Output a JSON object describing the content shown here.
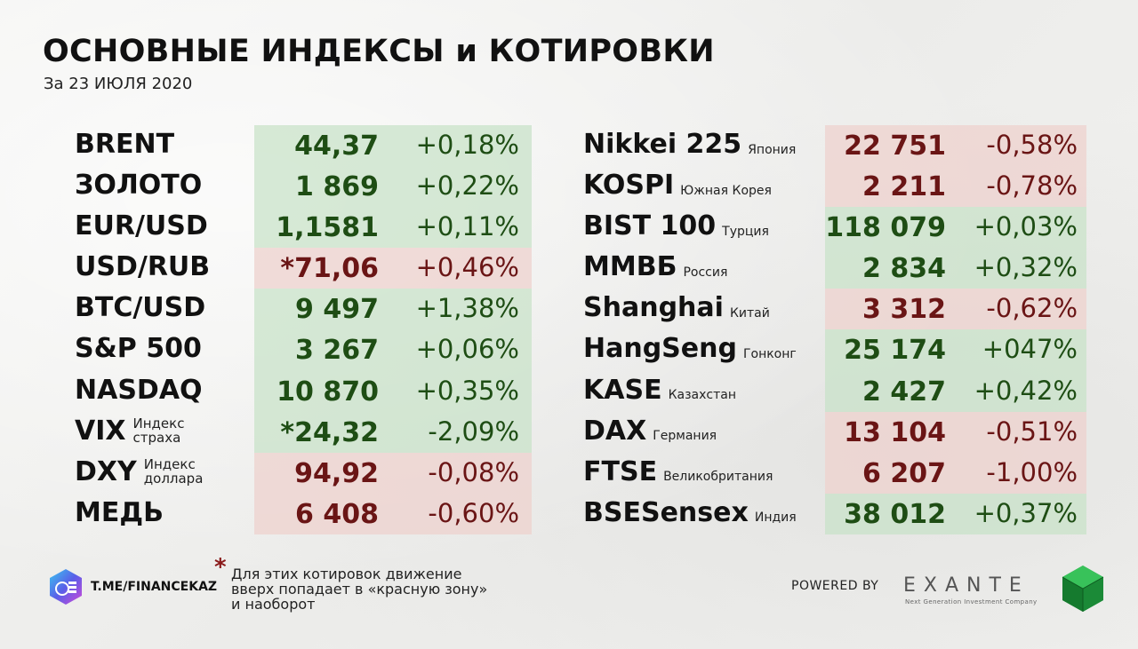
{
  "header": {
    "title": "ОСНОВНЫЕ ИНДЕКСЫ и КОТИРОВКИ",
    "subtitle": "За 23 ИЮЛЯ 2020"
  },
  "left_rows": [
    {
      "name": "BRENT",
      "value": "44,37",
      "change": "+0,18%",
      "direction": "up"
    },
    {
      "name": "ЗОЛОТО",
      "value": "1 869",
      "change": "+0,22%",
      "direction": "up"
    },
    {
      "name": "EUR/USD",
      "value": "1,1581",
      "change": "+0,11%",
      "direction": "up"
    },
    {
      "name": "USD/RUB",
      "value": "*71,06",
      "change": "+0,46%",
      "direction": "down"
    },
    {
      "name": "BTC/USD",
      "value": "9 497",
      "change": "+1,38%",
      "direction": "up"
    },
    {
      "name": "S&P 500",
      "value": "3 267",
      "change": "+0,06%",
      "direction": "up"
    },
    {
      "name": "NASDAQ",
      "value": "10 870",
      "change": "+0,35%",
      "direction": "up"
    },
    {
      "name": "VIX",
      "sub1": "Индекс",
      "sub2": "страха",
      "value": "*24,32",
      "change": "-2,09%",
      "direction": "up"
    },
    {
      "name": "DXY",
      "sub1": "Индекс",
      "sub2": "доллара",
      "value": "94,92",
      "change": "-0,08%",
      "direction": "down"
    },
    {
      "name": "МЕДЬ",
      "value": "6 408",
      "change": "-0,60%",
      "direction": "down"
    }
  ],
  "right_rows": [
    {
      "name": "Nikkei 225",
      "country": "Япония",
      "value": "22 751",
      "change": "-0,58%",
      "direction": "down"
    },
    {
      "name": "KOSPI",
      "country": "Южная Корея",
      "value": "2 211",
      "change": "-0,78%",
      "direction": "down"
    },
    {
      "name": "BIST 100",
      "country": "Турция",
      "value": "118 079",
      "change": "+0,03%",
      "direction": "up"
    },
    {
      "name": "ММВБ",
      "country": "Россия",
      "value": "2 834",
      "change": "+0,32%",
      "direction": "up"
    },
    {
      "name": "Shanghai",
      "country": "Китай",
      "value": "3 312",
      "change": "-0,62%",
      "direction": "down"
    },
    {
      "name": "HangSeng",
      "country": "Гонконг",
      "value": "25 174",
      "change": "+047%",
      "direction": "up"
    },
    {
      "name": "KASE",
      "country": "Казахстан",
      "value": "2 427",
      "change": "+0,42%",
      "direction": "up"
    },
    {
      "name": "DAX",
      "country": "Германия",
      "value": "13 104",
      "change": "-0,51%",
      "direction": "down"
    },
    {
      "name": "FTSE",
      "country": "Великобритания",
      "value": "6 207",
      "change": "-1,00%",
      "direction": "down"
    },
    {
      "name": "BSESensex",
      "country": "Индия",
      "value": "38 012",
      "change": "+0,37%",
      "direction": "up"
    }
  ],
  "footer": {
    "channel": "T.ME/FINANCEKAZ",
    "note_star": "*",
    "note_line1": "Для этих котировок движение",
    "note_line2": "вверх попадает в «красную зону»",
    "note_line3": "и наоборот",
    "powered_by": "POWERED BY",
    "brand": "EXANTE",
    "brand_tagline": "Next Generation Investment Company"
  },
  "colors": {
    "up_bg": "#c8e2c8",
    "down_bg": "#eed2ce",
    "up_text": "#1e4d14",
    "down_text": "#6a1515"
  }
}
